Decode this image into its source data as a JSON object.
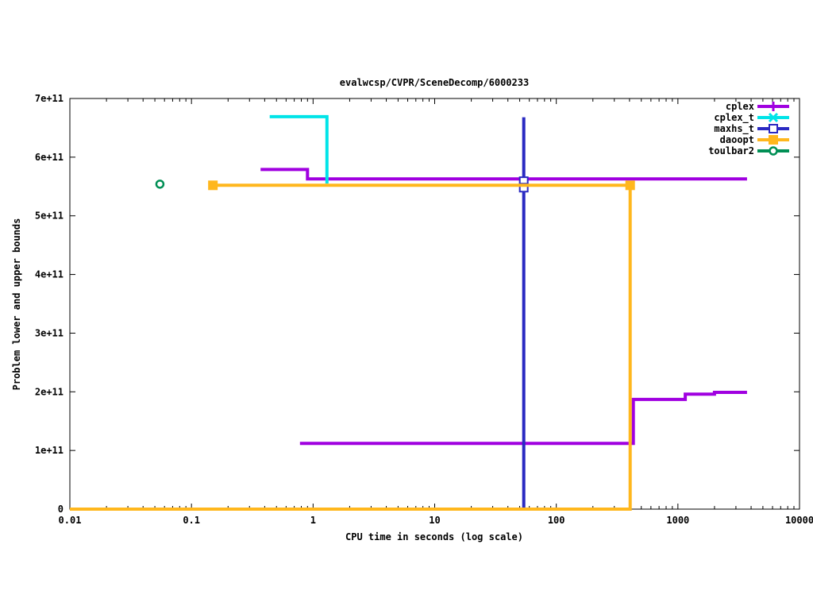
{
  "chart_data": {
    "type": "line",
    "title": "evalwcsp/CVPR/SceneDecomp/6000233",
    "xlabel": "CPU time in seconds (log scale)",
    "ylabel": "Problem lower and upper bounds",
    "x_axis": {
      "scale": "log",
      "min": 0.01,
      "max": 10000,
      "ticks": [
        {
          "v": 0.01,
          "label": "0.01"
        },
        {
          "v": 0.1,
          "label": "0.1"
        },
        {
          "v": 1,
          "label": "1"
        },
        {
          "v": 10,
          "label": "10"
        },
        {
          "v": 100,
          "label": "100"
        },
        {
          "v": 1000,
          "label": "1000"
        },
        {
          "v": 10000,
          "label": "10000"
        }
      ]
    },
    "y_axis": {
      "scale": "linear",
      "min": 0,
      "max": 700000000000.0,
      "ticks": [
        {
          "v": 0,
          "label": "0"
        },
        {
          "v": 100000000000.0,
          "label": "1e+11"
        },
        {
          "v": 200000000000.0,
          "label": "2e+11"
        },
        {
          "v": 300000000000.0,
          "label": "3e+11"
        },
        {
          "v": 400000000000.0,
          "label": "4e+11"
        },
        {
          "v": 500000000000.0,
          "label": "5e+11"
        },
        {
          "v": 600000000000.0,
          "label": "6e+11"
        },
        {
          "v": 700000000000.0,
          "label": "7e+11"
        }
      ]
    },
    "legend": {
      "position": "top-right",
      "entries": [
        "cplex",
        "cplex_t",
        "maxhs_t",
        "daoopt",
        "toulbar2"
      ]
    },
    "series": [
      {
        "name": "cplex",
        "color": "#a000e0",
        "marker": "plus",
        "lines": [
          [
            [
              0.37,
              579000000000.0
            ],
            [
              0.9,
              579000000000.0
            ],
            [
              0.9,
              563000000000.0
            ],
            [
              3700,
              563000000000.0
            ]
          ],
          [
            [
              0.78,
              112000000000.0
            ],
            [
              430,
              112000000000.0
            ],
            [
              430,
              187000000000.0
            ],
            [
              1150,
              187000000000.0
            ],
            [
              1150,
              196000000000.0
            ],
            [
              2000,
              196000000000.0
            ],
            [
              2000,
              199000000000.0
            ],
            [
              3700,
              199000000000.0
            ]
          ]
        ],
        "marker_points": []
      },
      {
        "name": "cplex_t",
        "color": "#00e4e8",
        "marker": "cross",
        "lines": [
          [
            [
              0.44,
              669000000000.0
            ],
            [
              1.3,
              669000000000.0
            ],
            [
              1.3,
              555000000000.0
            ]
          ]
        ],
        "marker_points": []
      },
      {
        "name": "maxhs_t",
        "color": "#2a2ac2",
        "marker": "square-open",
        "lines": [
          [
            [
              54,
              668000000000.0
            ],
            [
              54,
              0
            ]
          ]
        ],
        "marker_points": [
          [
            54,
            559000000000.0
          ],
          [
            54,
            548000000000.0
          ]
        ]
      },
      {
        "name": "daoopt",
        "color": "#ffb71d",
        "marker": "square-filled",
        "lines": [
          [
            [
              0.15,
              552000000000.0
            ],
            [
              405,
              552000000000.0
            ]
          ],
          [
            [
              0.01,
              0
            ],
            [
              405,
              0
            ],
            [
              405,
              552000000000.0
            ]
          ]
        ],
        "marker_points": [
          [
            0.15,
            552000000000.0
          ],
          [
            405,
            552000000000.0
          ]
        ]
      },
      {
        "name": "toulbar2",
        "color": "#008f55",
        "marker": "circle-open",
        "lines": [],
        "marker_points": [
          [
            0.055,
            554000000000.0
          ]
        ]
      }
    ]
  }
}
